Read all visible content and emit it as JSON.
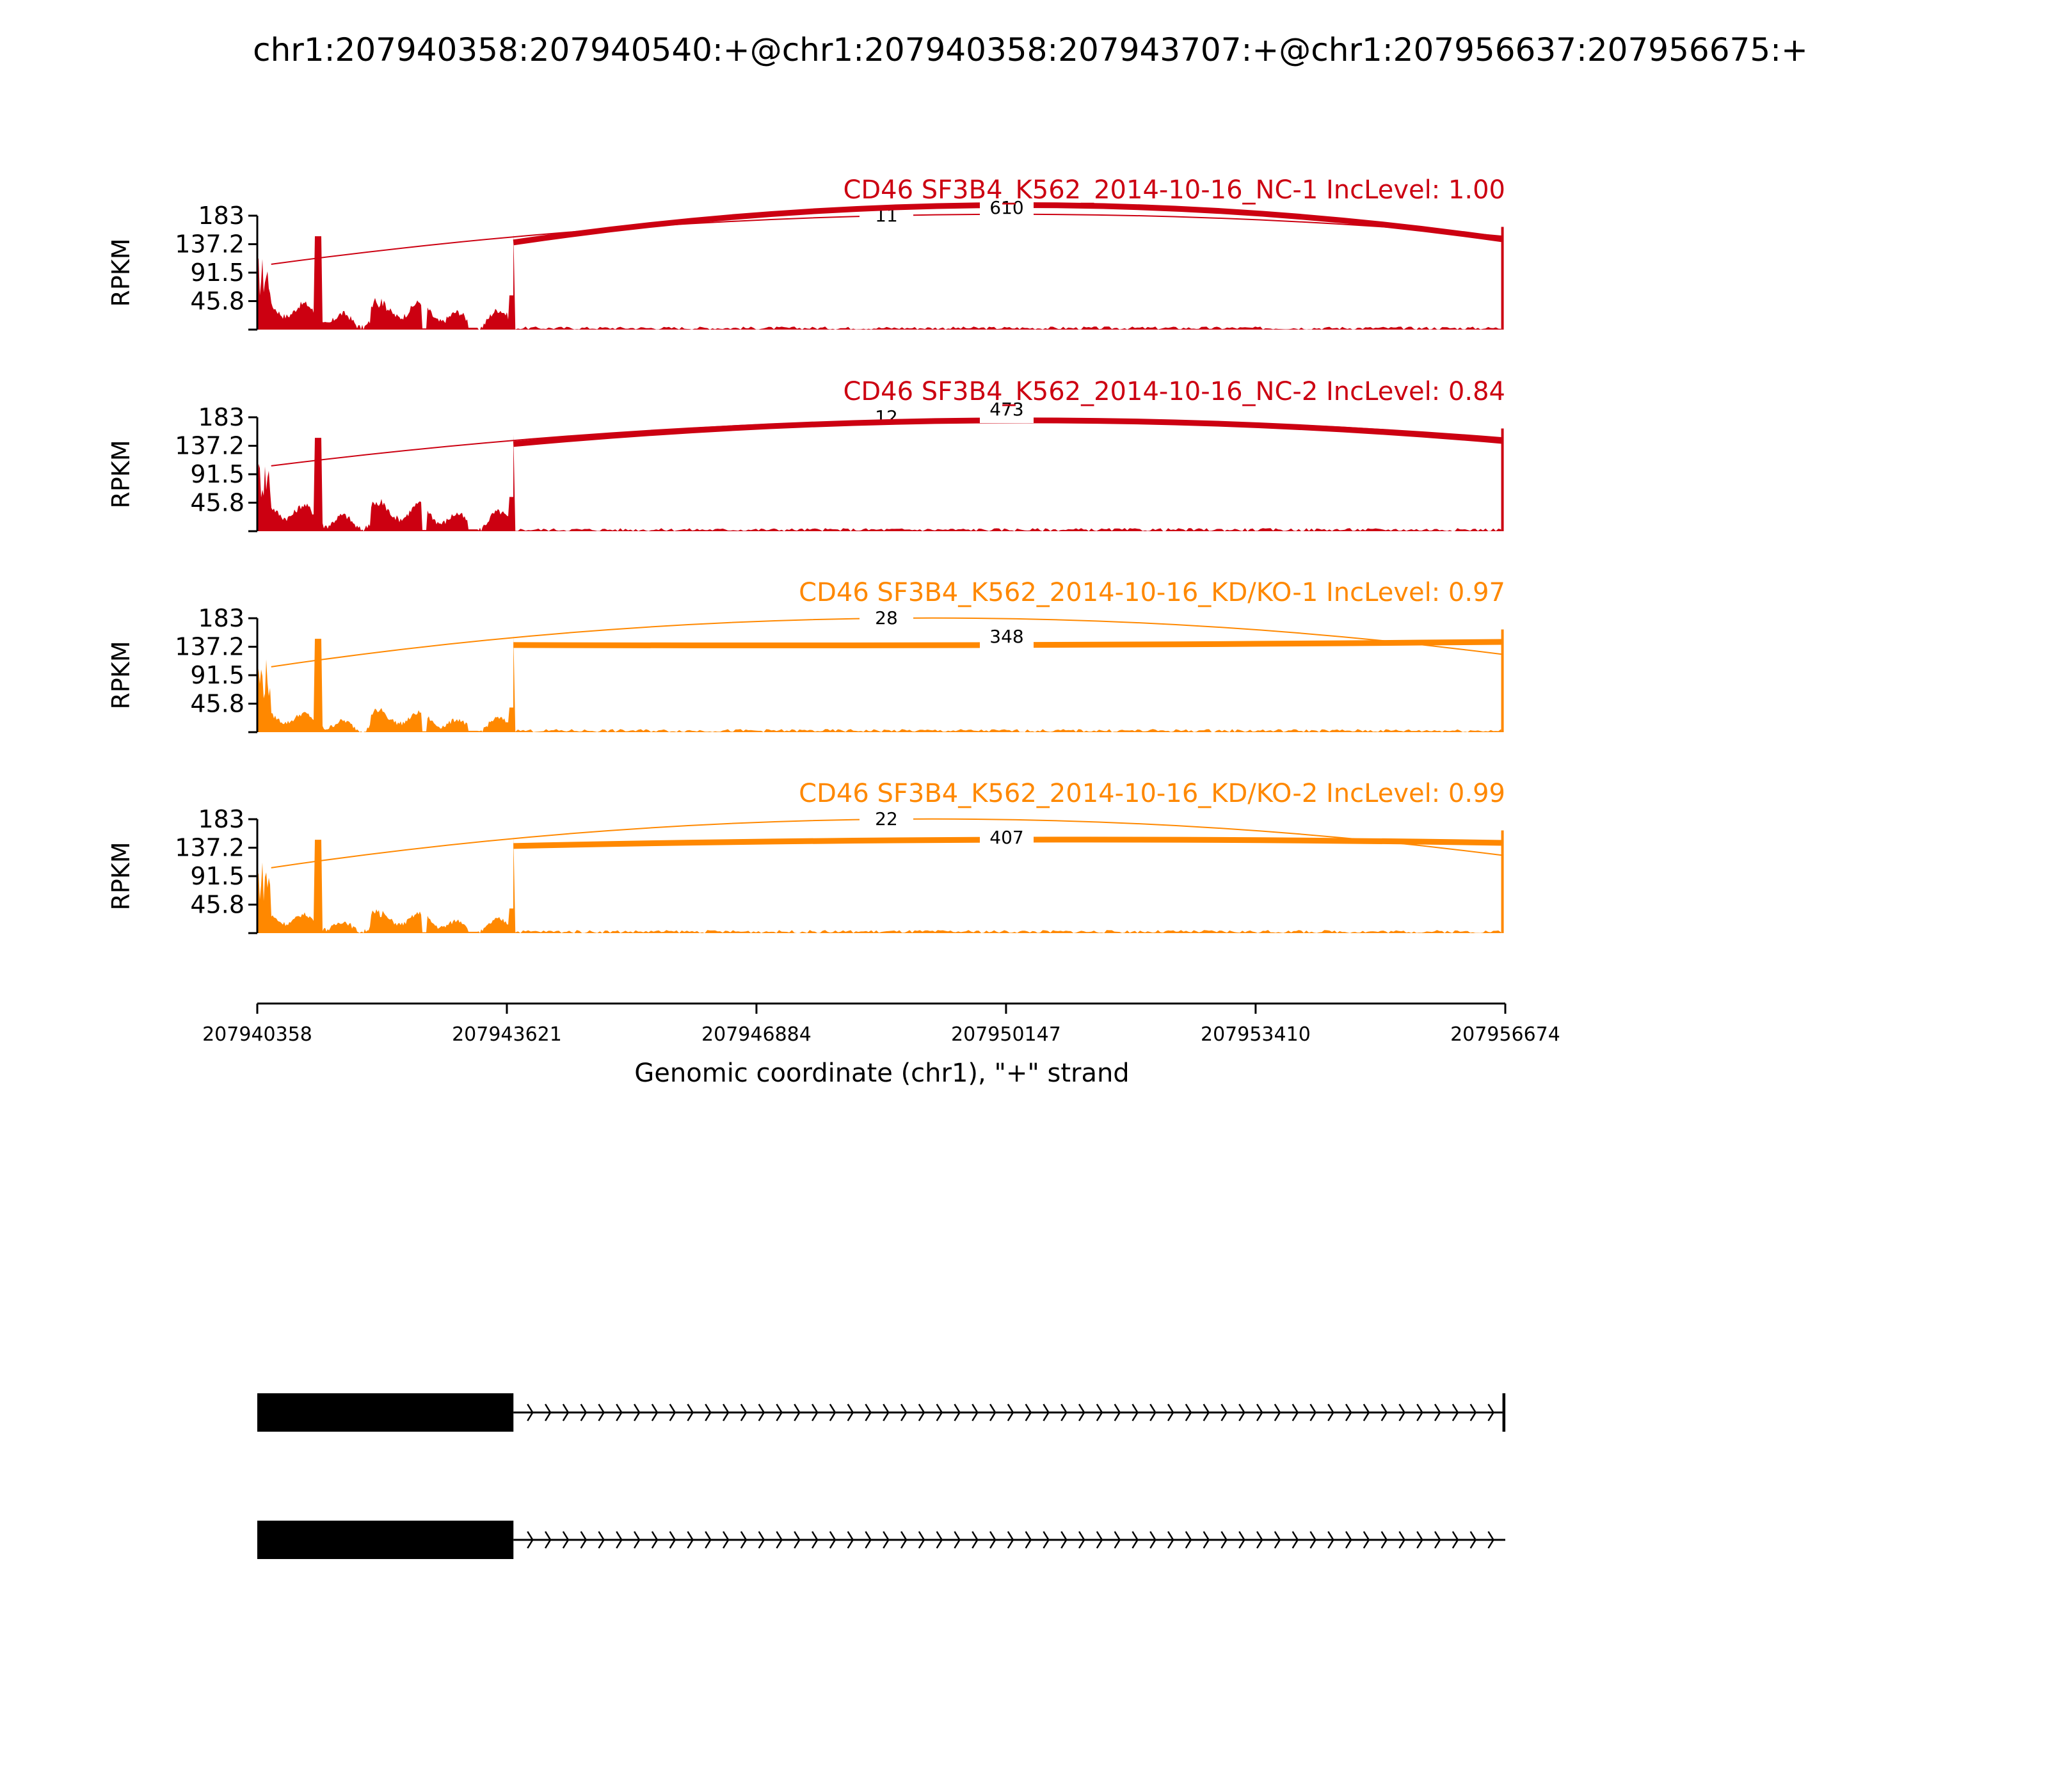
{
  "chart_data": {
    "type": "area",
    "title": "chr1:207940358:207940540:+@chr1:207940358:207943707:+@chr1:207956637:207956675:+",
    "xlabel": "Genomic coordinate (chr1), \"+\" strand",
    "ylabel": "RPKM",
    "xlim": [
      207940358,
      207956674
    ],
    "ylim": [
      0,
      183
    ],
    "xticks": [
      "207940358",
      "207943621",
      "207946884",
      "207950147",
      "207953410",
      "207956674"
    ],
    "yticks": [
      "45.8",
      "91.5",
      "137.2",
      "183"
    ],
    "colors": {
      "nc": "#cc0011",
      "kd": "#ff8800",
      "gene": "#000000"
    },
    "exon1_range": [
      207940358,
      207943707
    ],
    "exon2_range": [
      207956637,
      207956675
    ],
    "tracks": [
      {
        "title": "CD46 SF3B4_K562_2014-10-16_NC-1 IncLevel: 1.00",
        "group": "nc",
        "junctions": [
          {
            "from": 207940540,
            "to": 207956637,
            "count": "11",
            "peak": 183
          },
          {
            "from": 207943707,
            "to": 207956637,
            "count": "610",
            "peak": 200
          }
        ]
      },
      {
        "title": "CD46 SF3B4_K562_2014-10-16_NC-2 IncLevel: 0.84",
        "group": "nc",
        "junctions": [
          {
            "from": 207940540,
            "to": 207956637,
            "count": "12",
            "peak": 178
          },
          {
            "from": 207943707,
            "to": 207956637,
            "count": "473",
            "peak": 178
          }
        ]
      },
      {
        "title": "CD46 SF3B4_K562_2014-10-16_KD/KO-1 IncLevel: 0.97",
        "group": "kd",
        "junctions": [
          {
            "from": 207940540,
            "to": 207956637,
            "count": "28",
            "peak": 183
          },
          {
            "from": 207943707,
            "to": 207956637,
            "count": "348",
            "peak": 140
          }
        ]
      },
      {
        "title": "CD46 SF3B4_K562_2014-10-16_KD/KO-2 IncLevel: 0.99",
        "group": "kd",
        "junctions": [
          {
            "from": 207940540,
            "to": 207956637,
            "count": "22",
            "peak": 183
          },
          {
            "from": 207943707,
            "to": 207956637,
            "count": "407",
            "peak": 150
          }
        ]
      }
    ],
    "isoforms": [
      {
        "exons": [
          [
            207940358,
            207943707
          ],
          [
            207956637,
            207956675
          ]
        ]
      },
      {
        "exons": [
          [
            207940358,
            207943707
          ]
        ]
      }
    ]
  }
}
